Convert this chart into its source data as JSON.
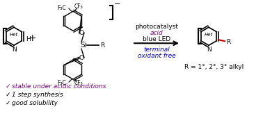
{
  "bg_color": "#ffffff",
  "conditions_line1": "photocatalyst",
  "conditions_line2": "acid",
  "conditions_line3": "blue LED",
  "conditions_line4_line1": "terminal",
  "conditions_line4_line2": "oxidant free",
  "r_label": "R = 1°, 2°, 3° alkyl",
  "bullet1": "stable under acidic conditions",
  "bullet2": "1 step synthesis",
  "bullet3": "good solubility",
  "black": "#000000",
  "red": "#CC0000",
  "purple": "#800080",
  "blue": "#0000CC"
}
